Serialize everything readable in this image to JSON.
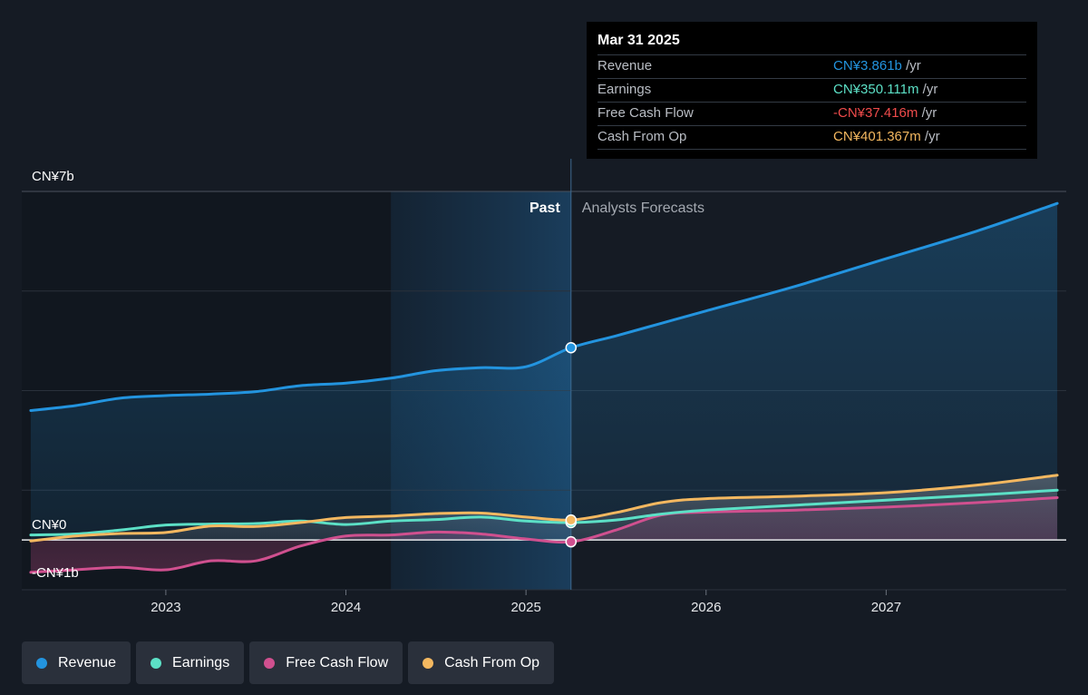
{
  "tooltip": {
    "date": "Mar 31 2025",
    "unit": "/yr",
    "rows": [
      {
        "label": "Revenue",
        "value": "CN¥3.861b",
        "color": "#2394df"
      },
      {
        "label": "Earnings",
        "value": "CN¥350.111m",
        "color": "#5ce0c6"
      },
      {
        "label": "Free Cash Flow",
        "value": "-CN¥37.416m",
        "color": "#ef4b4b"
      },
      {
        "label": "Cash From Op",
        "value": "CN¥401.367m",
        "color": "#f4b860"
      }
    ]
  },
  "legend": [
    {
      "label": "Revenue",
      "color": "#2394df"
    },
    {
      "label": "Earnings",
      "color": "#5ce0c6"
    },
    {
      "label": "Free Cash Flow",
      "color": "#d0508f"
    },
    {
      "label": "Cash From Op",
      "color": "#f4b860"
    }
  ],
  "chart_data": {
    "type": "line",
    "y_unit": "CN¥ billions",
    "ylim": [
      -1,
      7
    ],
    "ytick_labels": [
      {
        "value": 7,
        "label": "CN¥7b"
      },
      {
        "value": 0,
        "label": "CN¥0"
      },
      {
        "value": -1,
        "label": "-CN¥1b"
      }
    ],
    "xlim": [
      2022.2,
      2028.0
    ],
    "xticks": [
      2023,
      2024,
      2025,
      2026,
      2027
    ],
    "xtick_labels": [
      "2023",
      "2024",
      "2025",
      "2026",
      "2027"
    ],
    "grid": true,
    "past_label": "Past",
    "forecast_label": "Analysts Forecasts",
    "highlight_range": [
      2024.25,
      2025.25
    ],
    "cursor_x": 2025.25,
    "legend_position": "bottom-left",
    "series": [
      {
        "name": "Revenue",
        "color": "#2394df",
        "fill": true,
        "points": [
          [
            2022.25,
            2.6
          ],
          [
            2022.5,
            2.7
          ],
          [
            2022.75,
            2.85
          ],
          [
            2023.0,
            2.9
          ],
          [
            2023.25,
            2.93
          ],
          [
            2023.5,
            2.98
          ],
          [
            2023.75,
            3.1
          ],
          [
            2024.0,
            3.15
          ],
          [
            2024.25,
            3.25
          ],
          [
            2024.5,
            3.4
          ],
          [
            2024.75,
            3.46
          ],
          [
            2025.0,
            3.48
          ],
          [
            2025.25,
            3.861
          ],
          [
            2025.5,
            4.1
          ],
          [
            2025.75,
            4.35
          ],
          [
            2026.0,
            4.6
          ],
          [
            2026.5,
            5.1
          ],
          [
            2027.0,
            5.65
          ],
          [
            2027.5,
            6.2
          ],
          [
            2027.95,
            6.76
          ]
        ]
      },
      {
        "name": "Earnings",
        "color": "#5ce0c6",
        "fill": false,
        "points": [
          [
            2022.25,
            0.1
          ],
          [
            2022.5,
            0.12
          ],
          [
            2022.75,
            0.2
          ],
          [
            2023.0,
            0.3
          ],
          [
            2023.25,
            0.32
          ],
          [
            2023.5,
            0.33
          ],
          [
            2023.75,
            0.38
          ],
          [
            2024.0,
            0.31
          ],
          [
            2024.25,
            0.38
          ],
          [
            2024.5,
            0.41
          ],
          [
            2024.75,
            0.46
          ],
          [
            2025.0,
            0.38
          ],
          [
            2025.25,
            0.35
          ],
          [
            2025.5,
            0.4
          ],
          [
            2025.75,
            0.52
          ],
          [
            2026.0,
            0.6
          ],
          [
            2026.5,
            0.7
          ],
          [
            2027.0,
            0.8
          ],
          [
            2027.5,
            0.9
          ],
          [
            2027.95,
            1.0
          ]
        ]
      },
      {
        "name": "Free Cash Flow",
        "color": "#d0508f",
        "fill": false,
        "points": [
          [
            2022.25,
            -0.65
          ],
          [
            2022.5,
            -0.6
          ],
          [
            2022.75,
            -0.55
          ],
          [
            2023.0,
            -0.6
          ],
          [
            2023.25,
            -0.42
          ],
          [
            2023.5,
            -0.42
          ],
          [
            2023.75,
            -0.12
          ],
          [
            2024.0,
            0.08
          ],
          [
            2024.25,
            0.1
          ],
          [
            2024.5,
            0.16
          ],
          [
            2024.75,
            0.12
          ],
          [
            2025.0,
            0.02
          ],
          [
            2025.25,
            -0.037
          ],
          [
            2025.5,
            0.2
          ],
          [
            2025.75,
            0.5
          ],
          [
            2026.0,
            0.56
          ],
          [
            2026.5,
            0.6
          ],
          [
            2027.0,
            0.66
          ],
          [
            2027.5,
            0.75
          ],
          [
            2027.95,
            0.85
          ]
        ]
      },
      {
        "name": "Cash From Op",
        "color": "#f4b860",
        "fill": false,
        "points": [
          [
            2022.25,
            -0.02
          ],
          [
            2022.5,
            0.08
          ],
          [
            2022.75,
            0.13
          ],
          [
            2023.0,
            0.15
          ],
          [
            2023.25,
            0.28
          ],
          [
            2023.5,
            0.27
          ],
          [
            2023.75,
            0.35
          ],
          [
            2024.0,
            0.45
          ],
          [
            2024.25,
            0.48
          ],
          [
            2024.5,
            0.53
          ],
          [
            2024.75,
            0.54
          ],
          [
            2025.0,
            0.46
          ],
          [
            2025.25,
            0.401
          ],
          [
            2025.5,
            0.55
          ],
          [
            2025.75,
            0.75
          ],
          [
            2026.0,
            0.83
          ],
          [
            2026.5,
            0.88
          ],
          [
            2027.0,
            0.95
          ],
          [
            2027.5,
            1.1
          ],
          [
            2027.95,
            1.3
          ]
        ]
      }
    ]
  }
}
